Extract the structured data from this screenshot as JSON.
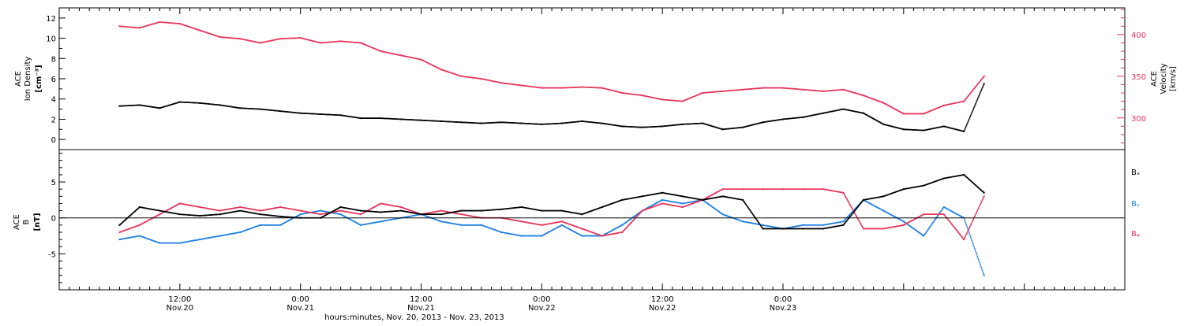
{
  "chart_data": [
    {
      "type": "scatter",
      "panel": "top",
      "left_axis_label": [
        "ACE",
        "Ion Density",
        "[cm⁻³]"
      ],
      "right_axis_label": [
        "ACE",
        "Velocity",
        "[km/s]"
      ],
      "left_ylim": [
        -1,
        13
      ],
      "left_yticks": [
        0,
        2,
        4,
        6,
        8,
        10,
        12
      ],
      "right_ylim": [
        262,
        432
      ],
      "right_yticks": [
        300,
        350,
        400
      ],
      "series": [
        {
          "color": "#000000",
          "axis": "left",
          "x": [
            0,
            2,
            4,
            6,
            8,
            10,
            12,
            14,
            16,
            18,
            20,
            22,
            24,
            26,
            28,
            30,
            32,
            34,
            36,
            38,
            40,
            42,
            44,
            46,
            48,
            50,
            52,
            54,
            56,
            58,
            60,
            62,
            64,
            66,
            68,
            70,
            72,
            74,
            76,
            78,
            80,
            82,
            84,
            86
          ],
          "y": [
            3.3,
            3.4,
            3.1,
            3.7,
            3.6,
            3.4,
            3.1,
            3.0,
            2.8,
            2.6,
            2.5,
            2.4,
            2.1,
            2.1,
            2.0,
            1.9,
            1.8,
            1.7,
            1.6,
            1.7,
            1.6,
            1.5,
            1.6,
            1.8,
            1.6,
            1.3,
            1.2,
            1.3,
            1.5,
            1.6,
            1.0,
            1.2,
            1.7,
            2.0,
            2.2,
            2.6,
            3.0,
            2.6,
            1.5,
            1.0,
            0.9,
            1.3,
            0.8,
            5.5
          ]
        },
        {
          "color": "#e8345a",
          "axis": "right",
          "x": [
            0,
            2,
            4,
            6,
            8,
            10,
            12,
            14,
            16,
            18,
            20,
            22,
            24,
            26,
            28,
            30,
            32,
            34,
            36,
            38,
            40,
            42,
            44,
            46,
            48,
            50,
            52,
            54,
            56,
            58,
            60,
            62,
            64,
            66,
            68,
            70,
            72,
            74,
            76,
            78,
            80,
            82,
            84,
            86
          ],
          "y": [
            410,
            408,
            415,
            413,
            405,
            397,
            395,
            390,
            395,
            396,
            390,
            392,
            390,
            380,
            375,
            370,
            358,
            350,
            347,
            342,
            339,
            336,
            336,
            337,
            336,
            330,
            327,
            322,
            320,
            330,
            332,
            334,
            336,
            336,
            334,
            332,
            334,
            327,
            318,
            305,
            305,
            315,
            320,
            350
          ]
        }
      ]
    },
    {
      "type": "scatter",
      "panel": "bottom",
      "left_axis_label": [
        "ACE",
        "B",
        "[nT]"
      ],
      "ylim": [
        -10,
        9.5
      ],
      "yticks": [
        -5,
        0,
        5
      ],
      "series": [
        {
          "name": "Bₓ",
          "color": "#000000",
          "x": [
            0,
            2,
            4,
            6,
            8,
            10,
            12,
            14,
            16,
            18,
            20,
            22,
            24,
            26,
            28,
            30,
            32,
            34,
            36,
            38,
            40,
            42,
            44,
            46,
            48,
            50,
            52,
            54,
            56,
            58,
            60,
            62,
            64,
            66,
            68,
            70,
            72,
            74,
            76,
            78,
            80,
            82,
            84,
            86
          ],
          "y": [
            -1.0,
            1.5,
            1.0,
            0.5,
            0.3,
            0.5,
            1.0,
            0.5,
            0.2,
            0.0,
            0.0,
            1.5,
            1.0,
            0.8,
            1.0,
            0.5,
            0.5,
            1.0,
            1.0,
            1.2,
            1.5,
            1.0,
            1.0,
            0.5,
            1.5,
            2.5,
            3.0,
            3.5,
            3.0,
            2.5,
            3.0,
            2.5,
            -1.5,
            -1.5,
            -1.5,
            -1.5,
            -1.0,
            2.5,
            3.0,
            4.0,
            4.5,
            5.5,
            6.0,
            3.5
          ]
        },
        {
          "name": "Bᵧ",
          "color": "#1e7fe0",
          "x": [
            0,
            2,
            4,
            6,
            8,
            10,
            12,
            14,
            16,
            18,
            20,
            22,
            24,
            26,
            28,
            30,
            32,
            34,
            36,
            38,
            40,
            42,
            44,
            46,
            48,
            50,
            52,
            54,
            56,
            58,
            60,
            62,
            64,
            66,
            68,
            70,
            72,
            74,
            76,
            78,
            80,
            82,
            84,
            86
          ],
          "y": [
            -3.0,
            -2.5,
            -3.5,
            -3.5,
            -3.0,
            -2.5,
            -2.0,
            -1.0,
            -1.0,
            0.5,
            1.0,
            0.5,
            -1.0,
            -0.5,
            0.0,
            0.5,
            -0.5,
            -1.0,
            -1.0,
            -2.0,
            -2.5,
            -2.5,
            -1.0,
            -2.5,
            -2.5,
            -1.0,
            1.0,
            2.5,
            2.0,
            2.5,
            0.5,
            -0.5,
            -1.0,
            -1.5,
            -1.0,
            -1.0,
            -0.5,
            2.5,
            1.0,
            -0.5,
            -2.5,
            1.5,
            0.0,
            -8.0
          ]
        },
        {
          "name": "Bᵩ",
          "color": "#e8345a",
          "x": [
            0,
            2,
            4,
            6,
            8,
            10,
            12,
            14,
            16,
            18,
            20,
            22,
            24,
            26,
            28,
            30,
            32,
            34,
            36,
            38,
            40,
            42,
            44,
            46,
            48,
            50,
            52,
            54,
            56,
            58,
            60,
            62,
            64,
            66,
            68,
            70,
            72,
            74,
            76,
            78,
            80,
            82,
            84,
            86
          ],
          "y": [
            -2.0,
            -1.0,
            0.5,
            2.0,
            1.5,
            1.0,
            1.5,
            1.0,
            1.5,
            1.0,
            0.5,
            1.0,
            0.5,
            2.0,
            1.5,
            0.5,
            1.0,
            0.5,
            0.0,
            0.0,
            -0.5,
            -1.0,
            -0.5,
            -1.5,
            -2.5,
            -2.0,
            1.0,
            2.0,
            1.5,
            2.5,
            4.0,
            4.0,
            4.0,
            4.0,
            4.0,
            4.0,
            3.5,
            -1.5,
            -1.5,
            -1.0,
            0.5,
            0.5,
            -3.0,
            3.0
          ]
        }
      ]
    }
  ],
  "x_axis": {
    "range_hours": [
      -6,
      100
    ],
    "ticks": [
      {
        "h": 6,
        "time": "12:00",
        "date": "Nov.20"
      },
      {
        "h": 18,
        "time": "0:00",
        "date": "Nov.21"
      },
      {
        "h": 30,
        "time": "12:00",
        "date": "Nov.21"
      },
      {
        "h": 42,
        "time": "0:00",
        "date": "Nov.22"
      },
      {
        "h": 54,
        "time": "12:00",
        "date": "Nov.22"
      },
      {
        "h": 66,
        "time": "0:00",
        "date": "Nov.23"
      }
    ],
    "title": "hours:minutes, Nov. 20, 2013 - Nov. 23, 2013"
  },
  "labels": {
    "density_1": "ACE",
    "density_2": "Ion Density",
    "density_3": "[cm⁻³]",
    "velocity_1": "ACE",
    "velocity_2": "Velocity",
    "velocity_3": "[km/s]",
    "b_1": "ACE",
    "b_2": "B",
    "b_3": "[nT]",
    "bx": "Bₓ",
    "by": "Bᵧ",
    "bz": "Bᵩ"
  },
  "colors": {
    "black": "#000000",
    "pink": "#e8345a",
    "blue": "#1e7fe0"
  }
}
